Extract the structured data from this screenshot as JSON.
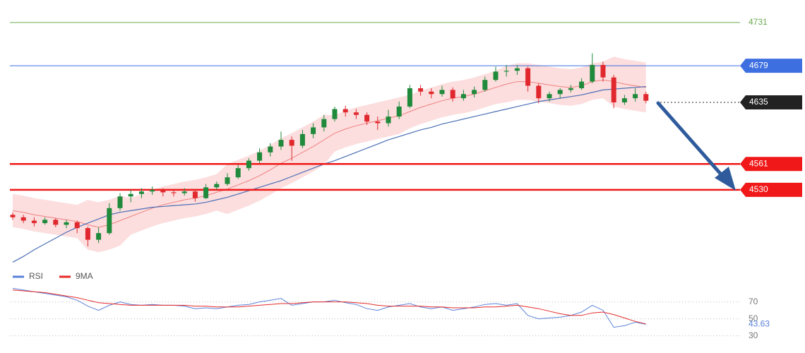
{
  "chart_data": {
    "type": "candlestick",
    "ylim": [
      4440,
      4758
    ],
    "up_color": "#1f8a3b",
    "down_color": "#e0282e",
    "ohlc": [
      [
        4500,
        4503,
        4494,
        4497
      ],
      [
        4497,
        4500,
        4490,
        4493
      ],
      [
        4493,
        4497,
        4486,
        4490
      ],
      [
        4490,
        4497,
        4488,
        4494
      ],
      [
        4494,
        4496,
        4485,
        4488
      ],
      [
        4488,
        4494,
        4484,
        4491
      ],
      [
        4491,
        4493,
        4478,
        4484
      ],
      [
        4484,
        4486,
        4462,
        4470
      ],
      [
        4470,
        4485,
        4466,
        4478
      ],
      [
        4478,
        4514,
        4476,
        4508
      ],
      [
        4508,
        4526,
        4505,
        4522
      ],
      [
        4522,
        4530,
        4515,
        4525
      ],
      [
        4525,
        4532,
        4520,
        4528
      ],
      [
        4528,
        4534,
        4524,
        4530
      ],
      [
        4530,
        4532,
        4522,
        4527
      ],
      [
        4527,
        4531,
        4522,
        4526
      ],
      [
        4526,
        4532,
        4523,
        4528
      ],
      [
        4528,
        4531,
        4516,
        4520
      ],
      [
        4520,
        4537,
        4519,
        4533
      ],
      [
        4533,
        4540,
        4530,
        4537
      ],
      [
        4537,
        4550,
        4535,
        4545
      ],
      [
        4545,
        4560,
        4543,
        4556
      ],
      [
        4556,
        4568,
        4553,
        4565
      ],
      [
        4565,
        4580,
        4562,
        4575
      ],
      [
        4575,
        4586,
        4570,
        4582
      ],
      [
        4582,
        4600,
        4578,
        4590
      ],
      [
        4590,
        4594,
        4565,
        4583
      ],
      [
        4583,
        4602,
        4580,
        4597
      ],
      [
        4597,
        4610,
        4592,
        4605
      ],
      [
        4605,
        4620,
        4600,
        4615
      ],
      [
        4615,
        4630,
        4612,
        4627
      ],
      [
        4627,
        4631,
        4618,
        4623
      ],
      [
        4623,
        4627,
        4615,
        4620
      ],
      [
        4620,
        4623,
        4608,
        4612
      ],
      [
        4612,
        4618,
        4602,
        4610
      ],
      [
        4610,
        4626,
        4606,
        4618
      ],
      [
        4618,
        4636,
        4615,
        4630
      ],
      [
        4630,
        4656,
        4628,
        4652
      ],
      [
        4652,
        4656,
        4643,
        4648
      ],
      [
        4648,
        4652,
        4640,
        4645
      ],
      [
        4645,
        4655,
        4642,
        4650
      ],
      [
        4650,
        4653,
        4636,
        4640
      ],
      [
        4640,
        4650,
        4637,
        4645
      ],
      [
        4645,
        4654,
        4641,
        4650
      ],
      [
        4650,
        4666,
        4648,
        4662
      ],
      [
        4662,
        4678,
        4660,
        4672
      ],
      [
        4672,
        4680,
        4666,
        4673
      ],
      [
        4673,
        4680,
        4668,
        4676
      ],
      [
        4676,
        4678,
        4648,
        4655
      ],
      [
        4655,
        4658,
        4634,
        4640
      ],
      [
        4640,
        4648,
        4636,
        4645
      ],
      [
        4645,
        4652,
        4640,
        4650
      ],
      [
        4650,
        4656,
        4647,
        4652
      ],
      [
        4652,
        4664,
        4650,
        4660
      ],
      [
        4660,
        4694,
        4658,
        4680
      ],
      [
        4680,
        4684,
        4660,
        4665
      ],
      [
        4665,
        4668,
        4628,
        4635
      ],
      [
        4635,
        4644,
        4632,
        4640
      ],
      [
        4640,
        4652,
        4636,
        4645
      ],
      [
        4645,
        4648,
        4634,
        4637
      ]
    ],
    "moving_average": {
      "color": "#4a6fb5",
      "values": [
        4443,
        4450,
        4458,
        4465,
        4472,
        4479,
        4485,
        4490,
        4495,
        4500,
        4503,
        4505,
        4507,
        4509,
        4510,
        4511,
        4512,
        4513,
        4515,
        4518,
        4521,
        4525,
        4529,
        4533,
        4537,
        4541,
        4546,
        4551,
        4556,
        4561,
        4565,
        4570,
        4575,
        4580,
        4585,
        4590,
        4594,
        4598,
        4602,
        4605,
        4609,
        4612,
        4615,
        4618,
        4621,
        4624,
        4627,
        4630,
        4633,
        4636,
        4638,
        4640,
        4642,
        4644,
        4647,
        4650,
        4651,
        4652,
        4653,
        4654
      ]
    },
    "band": {
      "fill": "#fbd3d3",
      "line_color": "#f08080",
      "middle": [
        4505,
        4503,
        4500,
        4498,
        4496,
        4494,
        4492,
        4488,
        4485,
        4488,
        4493,
        4498,
        4503,
        4508,
        4512,
        4515,
        4518,
        4520,
        4523,
        4527,
        4531,
        4536,
        4541,
        4547,
        4554,
        4562,
        4568,
        4575,
        4582,
        4590,
        4598,
        4603,
        4607,
        4610,
        4613,
        4616,
        4619,
        4624,
        4629,
        4633,
        4637,
        4640,
        4642,
        4645,
        4649,
        4653,
        4657,
        4660,
        4660,
        4658,
        4656,
        4654,
        4653,
        4655,
        4660,
        4662,
        4660,
        4657,
        4655,
        4653
      ],
      "upper": [
        4525,
        4523,
        4520,
        4518,
        4516,
        4514,
        4512,
        4518,
        4515,
        4518,
        4523,
        4520,
        4525,
        4530,
        4534,
        4537,
        4540,
        4542,
        4545,
        4549,
        4561,
        4566,
        4571,
        4577,
        4584,
        4592,
        4598,
        4605,
        4612,
        4620,
        4620,
        4625,
        4629,
        4632,
        4635,
        4638,
        4641,
        4644,
        4649,
        4653,
        4657,
        4660,
        4662,
        4665,
        4669,
        4673,
        4679,
        4682,
        4682,
        4680,
        4678,
        4676,
        4675,
        4677,
        4682,
        4684,
        4690,
        4687,
        4685,
        4683
      ],
      "lower": [
        4485,
        4483,
        4480,
        4478,
        4476,
        4474,
        4472,
        4458,
        4455,
        4458,
        4463,
        4476,
        4481,
        4486,
        4490,
        4493,
        4496,
        4498,
        4501,
        4505,
        4501,
        4506,
        4511,
        4517,
        4524,
        4532,
        4538,
        4545,
        4552,
        4560,
        4576,
        4581,
        4585,
        4588,
        4591,
        4594,
        4597,
        4604,
        4609,
        4613,
        4617,
        4620,
        4622,
        4625,
        4629,
        4633,
        4635,
        4638,
        4638,
        4636,
        4634,
        4632,
        4631,
        4633,
        4638,
        4640,
        4630,
        4627,
        4625,
        4623
      ]
    },
    "levels": [
      {
        "value": 4731,
        "color": "#6aa84f",
        "style": "plain"
      },
      {
        "value": 4679,
        "color": "#3d6fe0",
        "style": "box"
      },
      {
        "value": 4635,
        "color": "#222222",
        "style": "dotted"
      },
      {
        "value": 4561,
        "color": "#f01818",
        "style": "box"
      },
      {
        "value": 4530,
        "color": "#f01818",
        "style": "box"
      }
    ],
    "rsi_panel": {
      "ylim": [
        18,
        93
      ],
      "yticks": [
        30,
        50,
        70
      ],
      "series": [
        {
          "name": "RSI",
          "color": "#5b82d9",
          "values": [
            86,
            84,
            82,
            80,
            78,
            76,
            72,
            65,
            60,
            66,
            70,
            67,
            66,
            67,
            66,
            66,
            65,
            62,
            63,
            62,
            64,
            66,
            67,
            70,
            72,
            74,
            66,
            68,
            70,
            70,
            72,
            69,
            67,
            62,
            60,
            64,
            66,
            68,
            64,
            62,
            64,
            60,
            62,
            64,
            67,
            68,
            66,
            68,
            54,
            50,
            51,
            52,
            54,
            58,
            66,
            60,
            40,
            42,
            46,
            43.63
          ]
        },
        {
          "name": "9MA",
          "color": "#e62a2a",
          "values": [
            84,
            83,
            82,
            81,
            79,
            77,
            75,
            72,
            69,
            68,
            67,
            66,
            66,
            66,
            66,
            66,
            66,
            65,
            65,
            64,
            64,
            64,
            65,
            66,
            67,
            68,
            68,
            69,
            70,
            70,
            70,
            70,
            69,
            68,
            66,
            65,
            65,
            65,
            65,
            64,
            64,
            63,
            63,
            63,
            64,
            64,
            65,
            66,
            64,
            62,
            59,
            56,
            54,
            54,
            57,
            58,
            55,
            51,
            47,
            44
          ]
        }
      ]
    }
  }
}
